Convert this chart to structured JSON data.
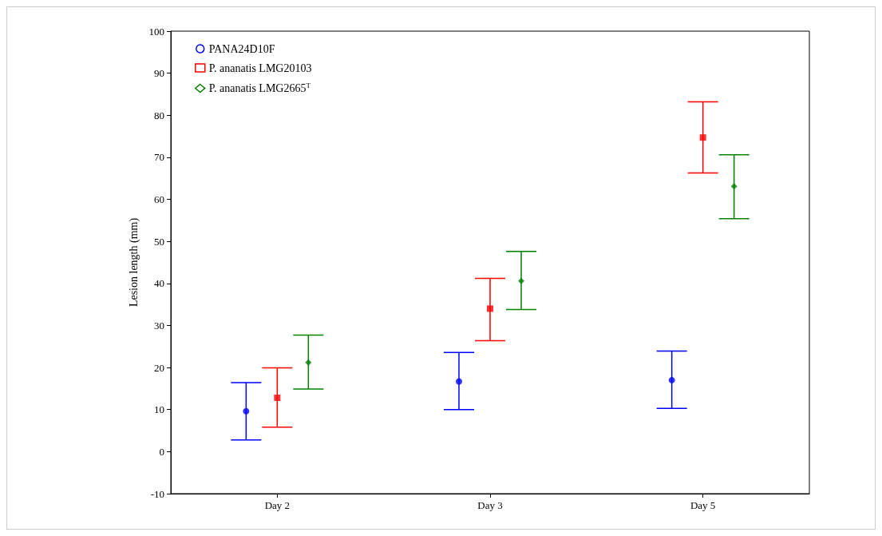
{
  "chart_data": {
    "type": "scatter",
    "ylabel": "Lesion length (mm)",
    "categories": [
      "Day 2",
      "Day 3",
      "Day 5"
    ],
    "ylim": [
      -10,
      100
    ],
    "yticks": [
      -10,
      0,
      10,
      20,
      30,
      40,
      50,
      60,
      70,
      80,
      90,
      100
    ],
    "grid": false,
    "legend": "top left",
    "series": [
      {
        "name": "PANA24D10F",
        "color": "#0000ff",
        "marker": "circle",
        "values": [
          9.6,
          16.7,
          17.0
        ],
        "errors": [
          [
            2.8,
            16.4
          ],
          [
            10.0,
            23.6
          ],
          [
            10.3,
            23.9
          ]
        ]
      },
      {
        "name": "P. ananatis LMG20103",
        "color": "#ff0000",
        "marker": "square",
        "values": [
          12.8,
          34.0,
          74.7
        ],
        "errors": [
          [
            5.8,
            19.9
          ],
          [
            26.4,
            41.2
          ],
          [
            66.3,
            83.2
          ]
        ]
      },
      {
        "name": "P. ananatis LMG2665$^{T}$",
        "color": "#008000",
        "marker": "diamond",
        "values": [
          21.2,
          40.6,
          63.1
        ],
        "errors": [
          [
            14.9,
            27.7
          ],
          [
            33.8,
            47.6
          ],
          [
            55.4,
            70.6
          ]
        ]
      }
    ]
  }
}
